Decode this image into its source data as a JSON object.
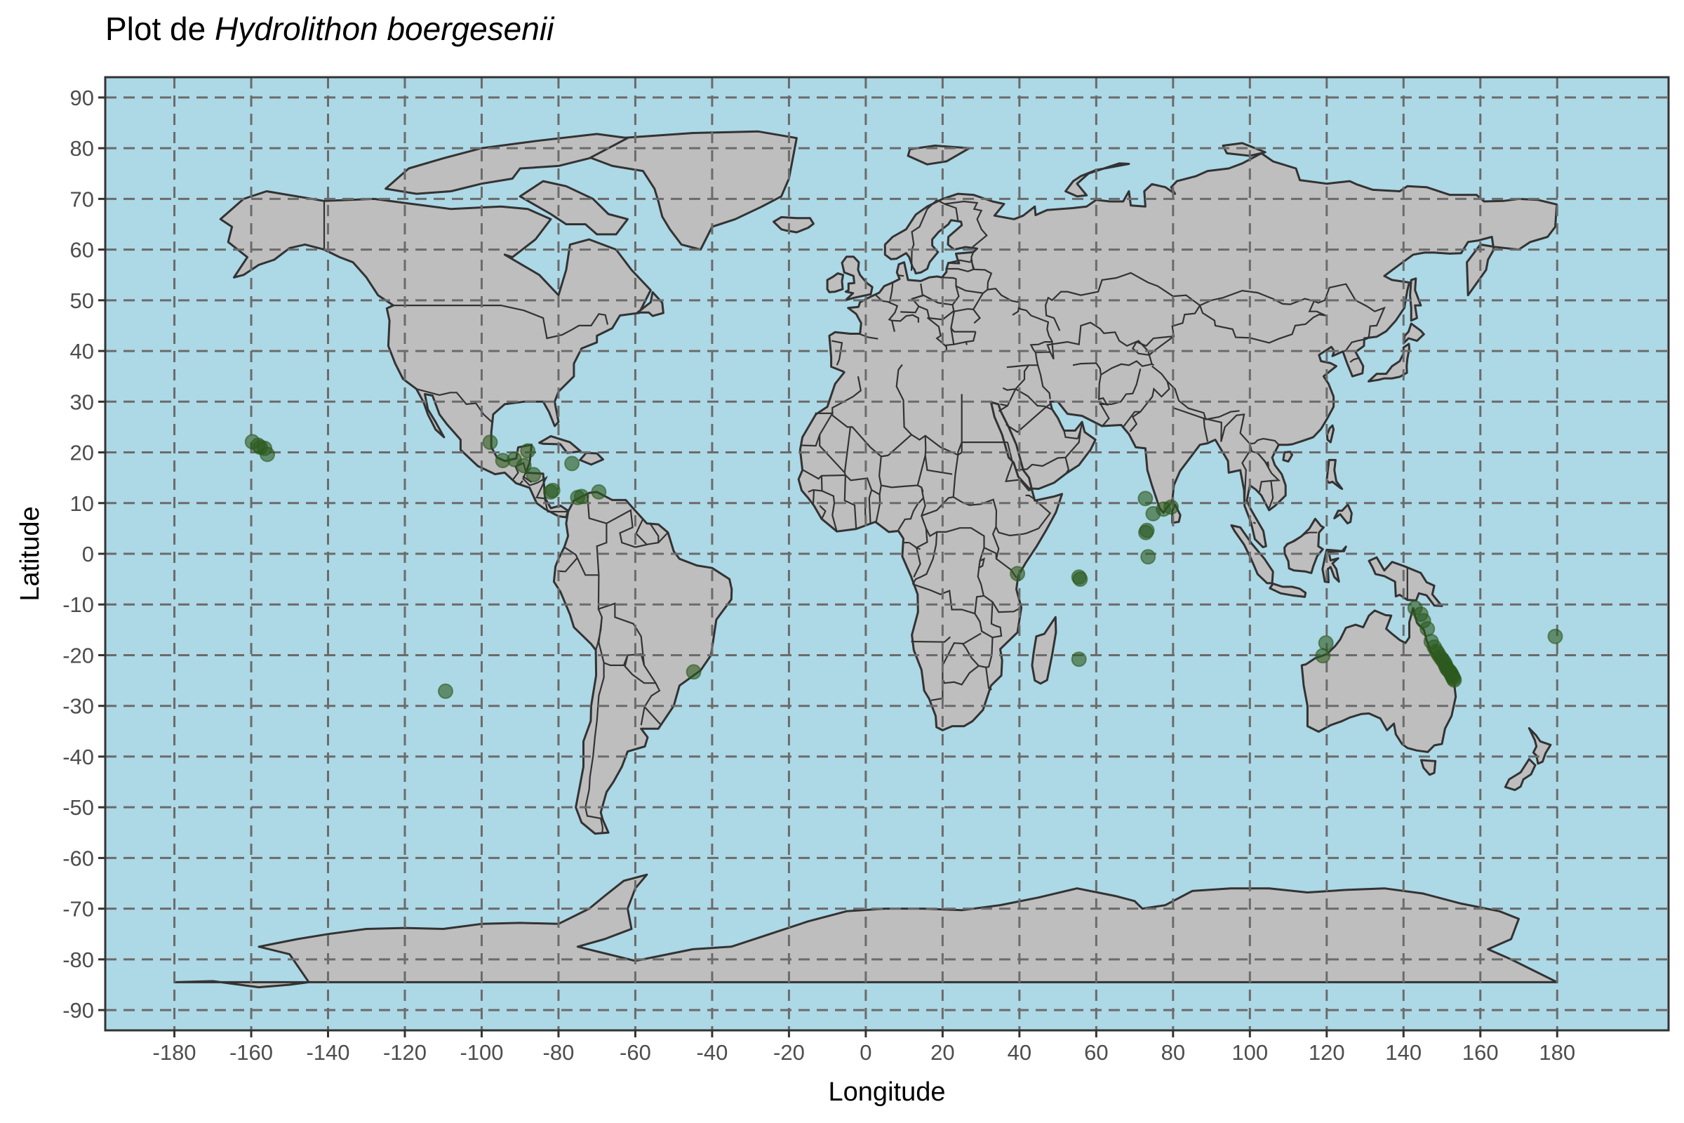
{
  "title": {
    "prefix": "Plot de ",
    "species": "Hydrolithon boergesenii"
  },
  "axes": {
    "x_label": "Longitude",
    "y_label": "Latitude",
    "x_ticks": [
      -180,
      -160,
      -140,
      -120,
      -100,
      -80,
      -60,
      -40,
      -20,
      0,
      20,
      40,
      60,
      80,
      100,
      120,
      140,
      160,
      180
    ],
    "y_ticks": [
      -90,
      -80,
      -70,
      -60,
      -50,
      -40,
      -30,
      -20,
      -10,
      0,
      10,
      20,
      30,
      40,
      50,
      60,
      70,
      80,
      90
    ],
    "x_range": [
      -198,
      209
    ],
    "y_range": [
      -94,
      94
    ]
  },
  "colors": {
    "ocean": "#add8e6",
    "land": "#bebebe",
    "land_border": "#333333",
    "grid": "#6b6b6b",
    "points": "#2d5a1e"
  },
  "chart_data": {
    "type": "scatter",
    "map": "world",
    "grid": true,
    "x": [
      -159.7,
      -158.2,
      -157.6,
      -156.5,
      -155.8,
      -97.8,
      -94.5,
      -91.5,
      -89.0,
      -88.0,
      -86.5,
      -82.0,
      -81.5,
      -76.5,
      -75.0,
      -74.0,
      -69.5,
      -109.4,
      -44.8,
      39.5,
      55.5,
      55.8,
      55.5,
      72.8,
      73.2,
      73.5,
      74.8,
      77.5,
      79.5,
      72.9,
      119.8,
      119.0,
      143.0,
      144.5,
      145.2,
      146.2,
      147.2,
      148.0,
      148.6,
      149.0,
      149.5,
      150.0,
      150.4,
      150.8,
      151.0,
      151.3,
      151.6,
      151.9,
      152.2,
      152.4,
      152.6,
      152.8,
      153.0,
      153.2,
      179.5
    ],
    "y": [
      22.1,
      21.4,
      21.0,
      20.8,
      19.6,
      22.0,
      18.4,
      18.6,
      17.4,
      20.3,
      15.6,
      12.2,
      12.5,
      17.8,
      11.1,
      11.3,
      12.2,
      -27.1,
      -23.3,
      -3.9,
      -4.6,
      -5.0,
      -20.8,
      10.9,
      4.6,
      -0.6,
      7.9,
      8.8,
      9.2,
      4.2,
      -17.6,
      -20.1,
      -10.7,
      -11.9,
      -13.2,
      -14.8,
      -17.3,
      -18.4,
      -19.2,
      -19.7,
      -20.3,
      -20.8,
      -21.2,
      -21.7,
      -22.1,
      -22.6,
      -22.9,
      -23.1,
      -23.4,
      -23.7,
      -24.0,
      -24.3,
      -24.6,
      -24.9,
      -16.3
    ],
    "xlabel": "Longitude",
    "ylabel": "Latitude",
    "xlim": [
      -198,
      209
    ],
    "ylim": [
      -94,
      94
    ]
  }
}
